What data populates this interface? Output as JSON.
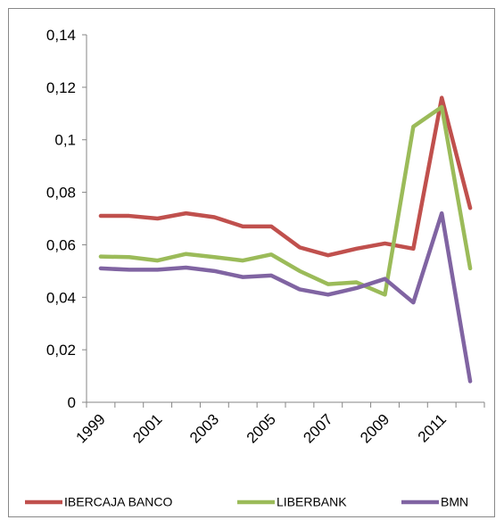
{
  "chart_data": {
    "type": "line",
    "categories": [
      "1999",
      null,
      "2001",
      null,
      "2003",
      null,
      "2005",
      null,
      "2007",
      null,
      "2009",
      null,
      "2011",
      null
    ],
    "series": [
      {
        "name": "IBERCAJA BANCO",
        "color": "#c0504d",
        "values": [
          0.071,
          0.071,
          0.07,
          0.072,
          0.0705,
          0.067,
          0.067,
          0.059,
          0.056,
          0.0585,
          0.0605,
          0.0585,
          0.116,
          0.074
        ]
      },
      {
        "name": "LIBERBANK",
        "color": "#9bbb59",
        "values": [
          0.0555,
          0.0553,
          0.054,
          0.0565,
          0.0553,
          0.054,
          0.0563,
          0.05,
          0.045,
          0.0457,
          0.041,
          0.105,
          0.1125,
          0.051
        ]
      },
      {
        "name": "BMN",
        "color": "#8064a2",
        "values": [
          0.051,
          0.0505,
          0.0505,
          0.0513,
          0.05,
          0.0477,
          0.0483,
          0.043,
          0.041,
          0.0435,
          0.047,
          0.038,
          0.072,
          0.008
        ]
      }
    ],
    "ylim": [
      0,
      0.14
    ],
    "yticks": [
      0,
      {
        "value": 0.02,
        "label": "0,02"
      },
      {
        "value": 0.04,
        "label": "0,04"
      },
      {
        "value": 0.06,
        "label": "0,06"
      },
      {
        "value": 0.08,
        "label": "0,08"
      },
      {
        "value": 0.1,
        "label": "0,1"
      },
      {
        "value": 0.12,
        "label": "0,12"
      },
      {
        "value": 0.14,
        "label": "0,14"
      }
    ],
    "legend": "bottom"
  }
}
